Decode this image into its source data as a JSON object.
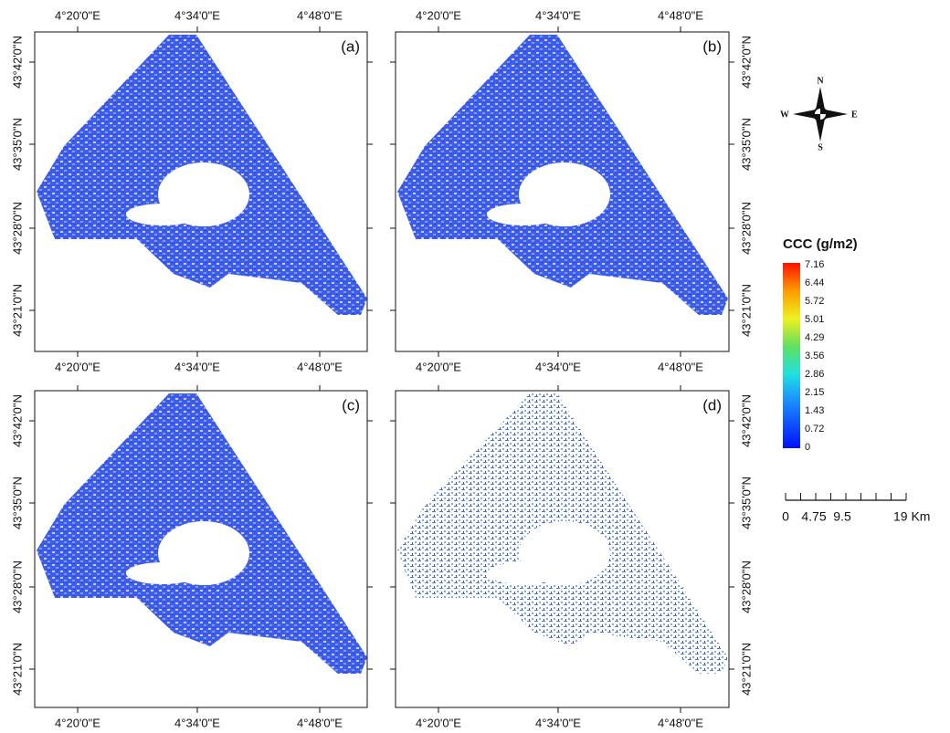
{
  "panels": [
    {
      "label": "(a)"
    },
    {
      "label": "(b)"
    },
    {
      "label": "(c)"
    },
    {
      "label": "(d)"
    }
  ],
  "lon_labels": [
    "4°20'0\"E",
    "4°34'0\"E",
    "4°48'0\"E"
  ],
  "lat_labels": [
    "43°42'0\"N",
    "43°35'0\"N",
    "43°28'0\"N",
    "43°21'0\"N"
  ],
  "legend": {
    "title": "CCC (g/m2)",
    "labels": [
      "7.16",
      "6.44",
      "5.72",
      "5.01",
      "4.29",
      "3.56",
      "2.86",
      "2.15",
      "1.43",
      "0.72",
      "0"
    ]
  },
  "scale_bar": {
    "labels": [
      "0",
      "4.75",
      "9.5",
      "19 Km"
    ]
  },
  "compass": {
    "n": "N",
    "e": "E",
    "s": "S",
    "w": "W"
  }
}
